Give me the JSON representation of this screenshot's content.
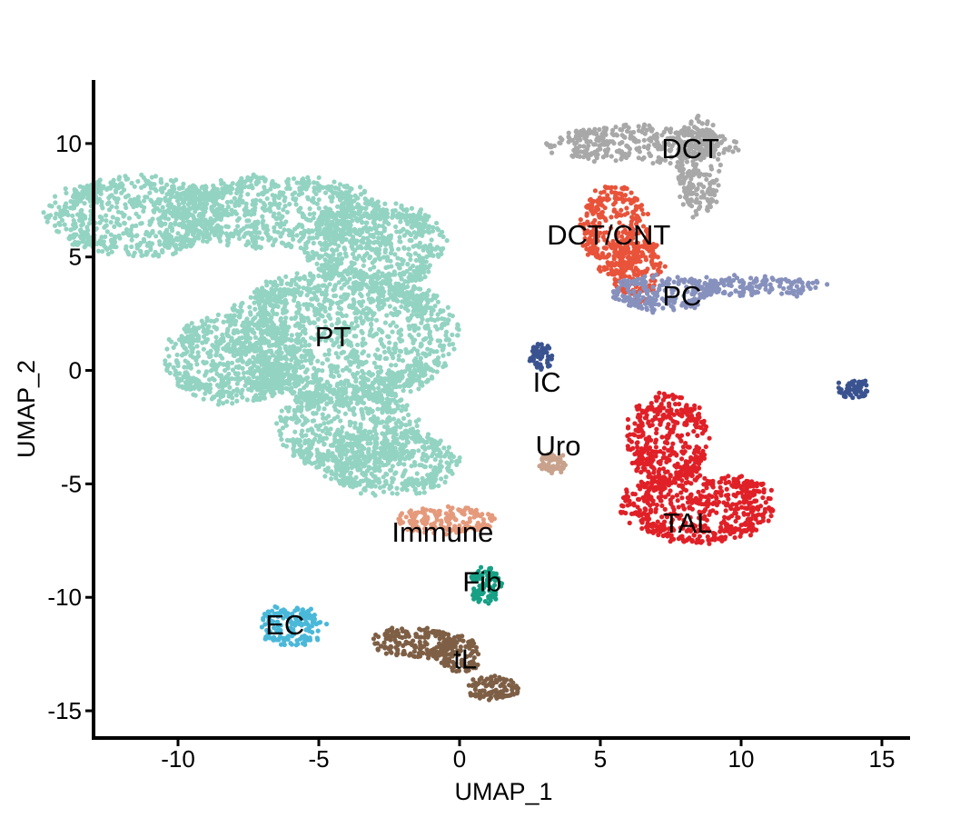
{
  "chart_data": {
    "type": "scatter",
    "title": "",
    "xlabel": "UMAP_1",
    "ylabel": "UMAP_2",
    "xlim": [
      -13,
      16
    ],
    "ylim": [
      -16.2,
      12.8
    ],
    "x_ticks": [
      -10,
      -5,
      0,
      5,
      10,
      15
    ],
    "y_ticks": [
      10,
      5,
      0,
      -5,
      -10,
      -15
    ],
    "x_tick_labels": [
      "-10",
      "-5",
      "0",
      "5",
      "10",
      "15"
    ],
    "y_tick_labels": [
      "10",
      "5",
      "0",
      "-5",
      "-10",
      "-15"
    ],
    "grid": false,
    "legend": "none",
    "clusters": [
      {
        "name": "PT",
        "color": "#93d3c2",
        "label_x": -4.5,
        "label_y": 1.5,
        "regions": [
          [
            -11.5,
            6.8,
            3.2,
            1.8
          ],
          [
            -6.5,
            7.0,
            3.8,
            1.6
          ],
          [
            -3.0,
            5.5,
            2.5,
            2.0
          ],
          [
            -4.2,
            1.5,
            4.2,
            3.0
          ],
          [
            -8.0,
            0.5,
            2.5,
            2.0
          ],
          [
            -4.0,
            -2.5,
            2.5,
            2.0
          ],
          [
            -2.5,
            -4.0,
            2.5,
            1.5
          ]
        ]
      },
      {
        "name": "DCT",
        "color": "#a8a8a8",
        "label_x": 8.2,
        "label_y": 9.8,
        "regions": [
          [
            6.5,
            10.0,
            3.5,
            0.8
          ],
          [
            8.5,
            9.0,
            0.8,
            2.2
          ]
        ]
      },
      {
        "name": "DCT/CNT",
        "color": "#e8533a",
        "label_x": 5.3,
        "label_y": 6.0,
        "regions": [
          [
            5.5,
            6.2,
            1.2,
            2.0
          ],
          [
            6.3,
            4.5,
            0.9,
            1.5
          ]
        ]
      },
      {
        "name": "PC",
        "color": "#8791bd",
        "label_x": 7.9,
        "label_y": 3.3,
        "regions": [
          [
            7.2,
            3.4,
            1.8,
            0.8
          ],
          [
            10.5,
            3.7,
            2.5,
            0.4
          ]
        ]
      },
      {
        "name": "IC",
        "color": "#3a5390",
        "label_x": 3.1,
        "label_y": -0.5,
        "regions": [
          [
            2.9,
            0.6,
            0.35,
            0.6
          ],
          [
            14.0,
            -0.8,
            0.5,
            0.4
          ]
        ]
      },
      {
        "name": "Uro",
        "color": "#c8a28c",
        "label_x": 3.5,
        "label_y": -3.3,
        "regions": [
          [
            3.3,
            -4.1,
            0.5,
            0.4
          ]
        ]
      },
      {
        "name": "TAL",
        "color": "#e02027",
        "label_x": 8.1,
        "label_y": -6.7,
        "regions": [
          [
            8.5,
            -6.0,
            2.8,
            1.6
          ],
          [
            7.4,
            -3.0,
            1.5,
            2.0
          ]
        ]
      },
      {
        "name": "Immune",
        "color": "#e59a7c",
        "label_x": -0.6,
        "label_y": -7.1,
        "regions": [
          [
            -0.5,
            -6.6,
            1.8,
            0.6
          ]
        ]
      },
      {
        "name": "Fib",
        "color": "#17a085",
        "label_x": 0.8,
        "label_y": -9.3,
        "regions": [
          [
            0.9,
            -9.5,
            0.55,
            0.8
          ]
        ]
      },
      {
        "name": "EC",
        "color": "#4ab8d9",
        "label_x": -6.2,
        "label_y": -11.2,
        "regions": [
          [
            -6.0,
            -11.3,
            1.2,
            0.9
          ]
        ]
      },
      {
        "name": "tL",
        "color": "#7e5f45",
        "label_x": 0.2,
        "label_y": -12.7,
        "regions": [
          [
            -1.6,
            -12.0,
            1.5,
            0.7
          ],
          [
            0.0,
            -12.5,
            0.8,
            0.8
          ],
          [
            1.2,
            -14.0,
            1.0,
            0.5
          ]
        ]
      }
    ]
  }
}
